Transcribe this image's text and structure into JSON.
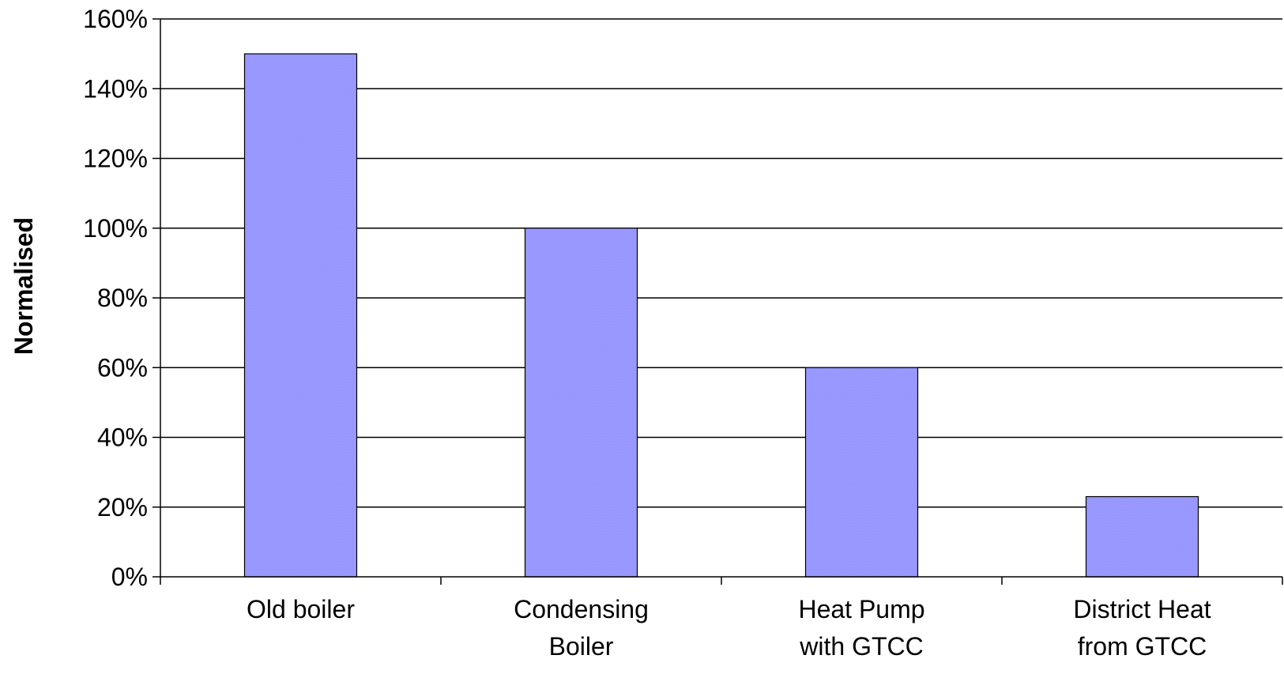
{
  "chart_data": {
    "type": "bar",
    "title": "",
    "xlabel": "",
    "ylabel": "Normalised",
    "categories": [
      [
        "Old boiler"
      ],
      [
        "Condensing",
        "Boiler"
      ],
      [
        "Heat Pump",
        "with GTCC"
      ],
      [
        "District Heat",
        "from GTCC"
      ]
    ],
    "values": [
      150,
      100,
      60,
      23
    ],
    "ylim": [
      0,
      160
    ],
    "yticks": [
      0,
      20,
      40,
      60,
      80,
      100,
      120,
      140,
      160
    ],
    "ytick_suffix": "%",
    "grid": true,
    "legend": "none",
    "colors": {
      "bar_fill": "#9999ff",
      "bar_stroke": "#000000",
      "grid": "#000000",
      "text": "#000000"
    }
  }
}
